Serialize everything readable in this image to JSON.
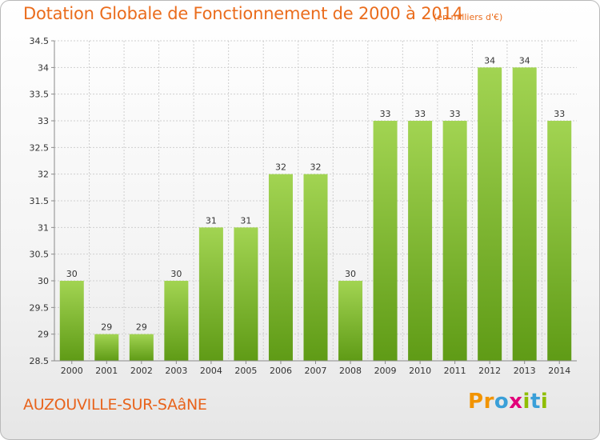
{
  "header": {
    "title": "Dotation Globale de Fonctionnement de 2000 à 2014",
    "unit": "(en milliers d'€)"
  },
  "footer": {
    "commune": "AUZOUVILLE-SUR-SAâNE",
    "brand_letters": [
      "P",
      "r",
      "o",
      "x",
      "i",
      "t",
      "i"
    ],
    "brand_colors": [
      "#f29400",
      "#f29400",
      "#3a9fd8",
      "#e2007a",
      "#8fbe00",
      "#3a9fd8",
      "#8fbe00"
    ]
  },
  "chart_data": {
    "type": "bar",
    "title": "Dotation Globale de Fonctionnement de 2000 à 2014",
    "categories": [
      "2000",
      "2001",
      "2002",
      "2003",
      "2004",
      "2005",
      "2006",
      "2007",
      "2008",
      "2009",
      "2010",
      "2011",
      "2012",
      "2013",
      "2014"
    ],
    "values": [
      30,
      29,
      29,
      30,
      31,
      31,
      32,
      32,
      30,
      33,
      33,
      33,
      34,
      34,
      33
    ],
    "data_labels": [
      "30",
      "29",
      "29",
      "30",
      "31",
      "31",
      "32",
      "32",
      "30",
      "33",
      "33",
      "33",
      "34",
      "34",
      "33"
    ],
    "ylim": [
      28.5,
      34.5
    ],
    "yticks": [
      28.5,
      29,
      29.5,
      30,
      30.5,
      31,
      31.5,
      32,
      32.5,
      33,
      33.5,
      34,
      34.5
    ],
    "ytick_labels": [
      "28.5",
      "29",
      "29.5",
      "30",
      "30.5",
      "31",
      "31.5",
      "32",
      "32.5",
      "33",
      "33.5",
      "34",
      "34.5"
    ],
    "xlabel": "",
    "ylabel": "",
    "grid": true,
    "legend": false,
    "colors": {
      "bar_top": "#a2d452",
      "bar_bottom": "#5f9b16",
      "axis": "#8a8a8a",
      "grid": "#cfcfcf",
      "text": "#333333"
    }
  }
}
